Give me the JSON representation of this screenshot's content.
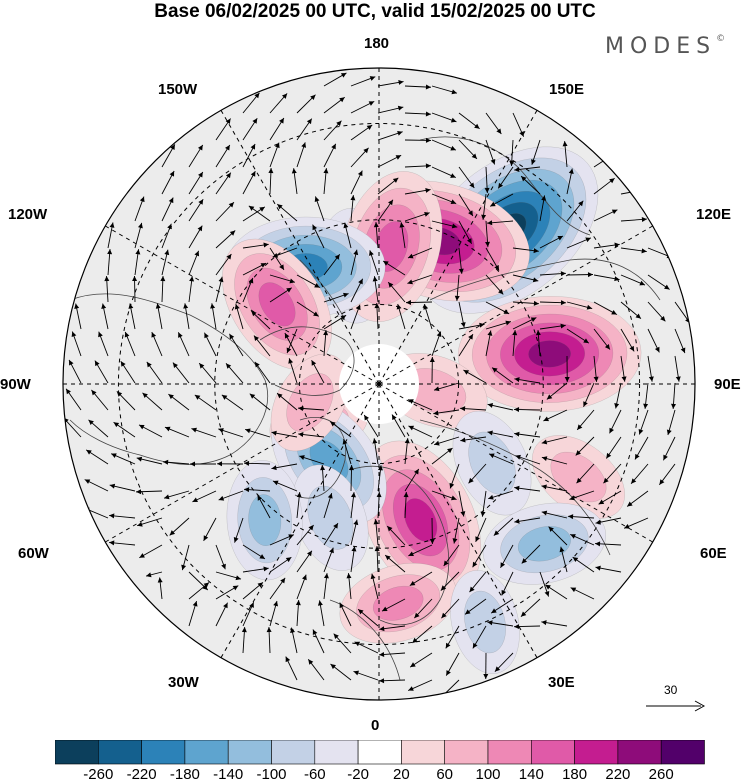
{
  "header": {
    "title": "Base 06/02/2025 00 UTC, valid 15/02/2025 00 UTC",
    "brand": "MODES",
    "brand_mark": "©"
  },
  "map": {
    "projection": "north-polar-stereographic",
    "longitude_labels": {
      "lon_180": "180",
      "lon_150w": "150W",
      "lon_150e": "150E",
      "lon_120w": "120W",
      "lon_120e": "120E",
      "lon_90w": "90W",
      "lon_90e": "90E",
      "lon_60w": "60W",
      "lon_60e": "60E",
      "lon_30w": "30W",
      "lon_30e": "30E",
      "lon_0": "0"
    },
    "vector_reference": {
      "label": "30"
    }
  },
  "colorbar": {
    "tick_labels": [
      "-260",
      "-220",
      "-180",
      "-140",
      "-100",
      "-60",
      "-20",
      "20",
      "60",
      "100",
      "140",
      "180",
      "220",
      "260"
    ],
    "colors": [
      "#0c3f5c",
      "#14608e",
      "#2c82b8",
      "#5ea4cf",
      "#93bedd",
      "#c3d1e6",
      "#e4e3f0",
      "#ffffff",
      "#f7d6d9",
      "#f5b3c6",
      "#ee88b5",
      "#e05aa8",
      "#c41d90",
      "#8e0c7a",
      "#52006a"
    ]
  },
  "anomalies": [
    {
      "lon": 140,
      "lat": 42,
      "value": -260
    },
    {
      "lon": 157,
      "lat": 52,
      "value": 210
    },
    {
      "lon": -168,
      "lat": 60,
      "value": -70
    },
    {
      "lon": 175,
      "lat": 56,
      "value": 150
    },
    {
      "lon": -148,
      "lat": 56,
      "value": -160
    },
    {
      "lon": -128,
      "lat": 58,
      "value": 130
    },
    {
      "lon": -57,
      "lat": 72,
      "value": 40
    },
    {
      "lon": 100,
      "lat": 48,
      "value": 210
    },
    {
      "lon": 83,
      "lat": 76,
      "value": 60
    },
    {
      "lon": 65,
      "lat": 38,
      "value": 50
    },
    {
      "lon": 55,
      "lat": 56,
      "value": -60
    },
    {
      "lon": 17,
      "lat": 55,
      "value": 180
    },
    {
      "lon": -33,
      "lat": 67,
      "value": -130
    },
    {
      "lon": 46,
      "lat": 36,
      "value": -90
    },
    {
      "lon": 5,
      "lat": 38,
      "value": 80
    },
    {
      "lon": -75,
      "lat": 72,
      "value": 50
    },
    {
      "lon": 24,
      "lat": 30,
      "value": -50
    },
    {
      "lon": -20,
      "lat": 55,
      "value": -60
    },
    {
      "lon": -40,
      "lat": 47,
      "value": -80
    }
  ]
}
